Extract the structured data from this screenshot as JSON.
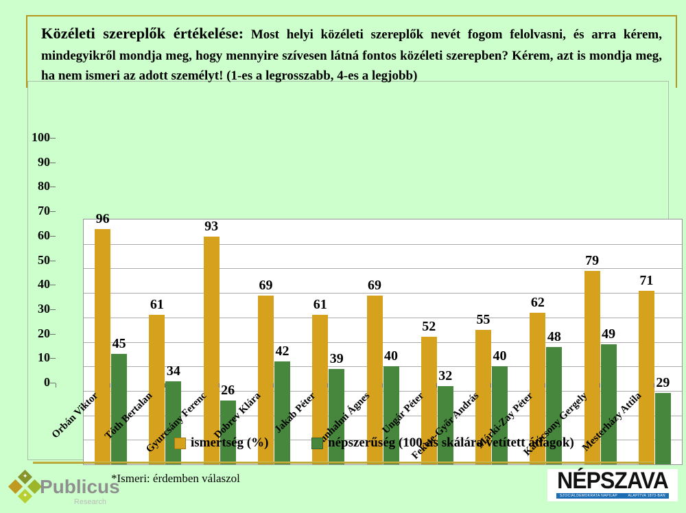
{
  "slide": {
    "title_lead": "Közéleti szereplők értékelése:",
    "title_rest": "Most helyi közéleti szereplők nevét fogom felolvasni, és arra kérem, mindegyikről mondja meg, hogy mennyire szívesen látná fontos közéleti szerepben? Kérem, azt is mondja meg, ha nem ismeri az adott személyt!  (1-es a legrosszabb, 4-es a legjobb)",
    "footnote": "*Ismeri: érdemben válaszol"
  },
  "chart_data": {
    "type": "bar",
    "categories": [
      "Orbán Viktor",
      "Tóth Bertalan",
      "Gyurcsány Ferenc",
      "Dobrev Klára",
      "Jakab Péter",
      "Kunhalmi Ágnes",
      "Ungár Péter",
      "Fekete-Győr András",
      "Márki-Zay Péter",
      "Karácsony Gergely",
      "Mesterházy Attila"
    ],
    "series": [
      {
        "name": "ismertség (%)",
        "color": "#d6a11c",
        "values": [
          96,
          61,
          93,
          69,
          61,
          69,
          52,
          55,
          62,
          79,
          71
        ]
      },
      {
        "name": "népszerűség (100-as skálára vetített átlagok)",
        "color": "#47873d",
        "values": [
          45,
          34,
          26,
          42,
          39,
          40,
          32,
          40,
          48,
          49,
          29
        ]
      }
    ],
    "ylim": [
      0,
      100
    ],
    "yticks": [
      0,
      10,
      20,
      30,
      40,
      50,
      60,
      70,
      80,
      90,
      100
    ],
    "grid": true,
    "plot_background": "#ffffff",
    "legend_position": "bottom"
  },
  "branding": {
    "publicus": {
      "name": "Publicus",
      "sub": "Research"
    },
    "nepszava": {
      "name": "NÉPSZAVA",
      "tagline_left": "SZOCIÁLDEMOKRATA NAPILAP",
      "tagline_right": "ALAPÍTVA 1873-BAN"
    }
  },
  "colors": {
    "slide_background": "#ccffcc",
    "title_border_gold": "#b5951c",
    "bar_orange": "#d6a11c",
    "bar_green": "#47873d",
    "nepszava_blue": "#1c6db2"
  }
}
